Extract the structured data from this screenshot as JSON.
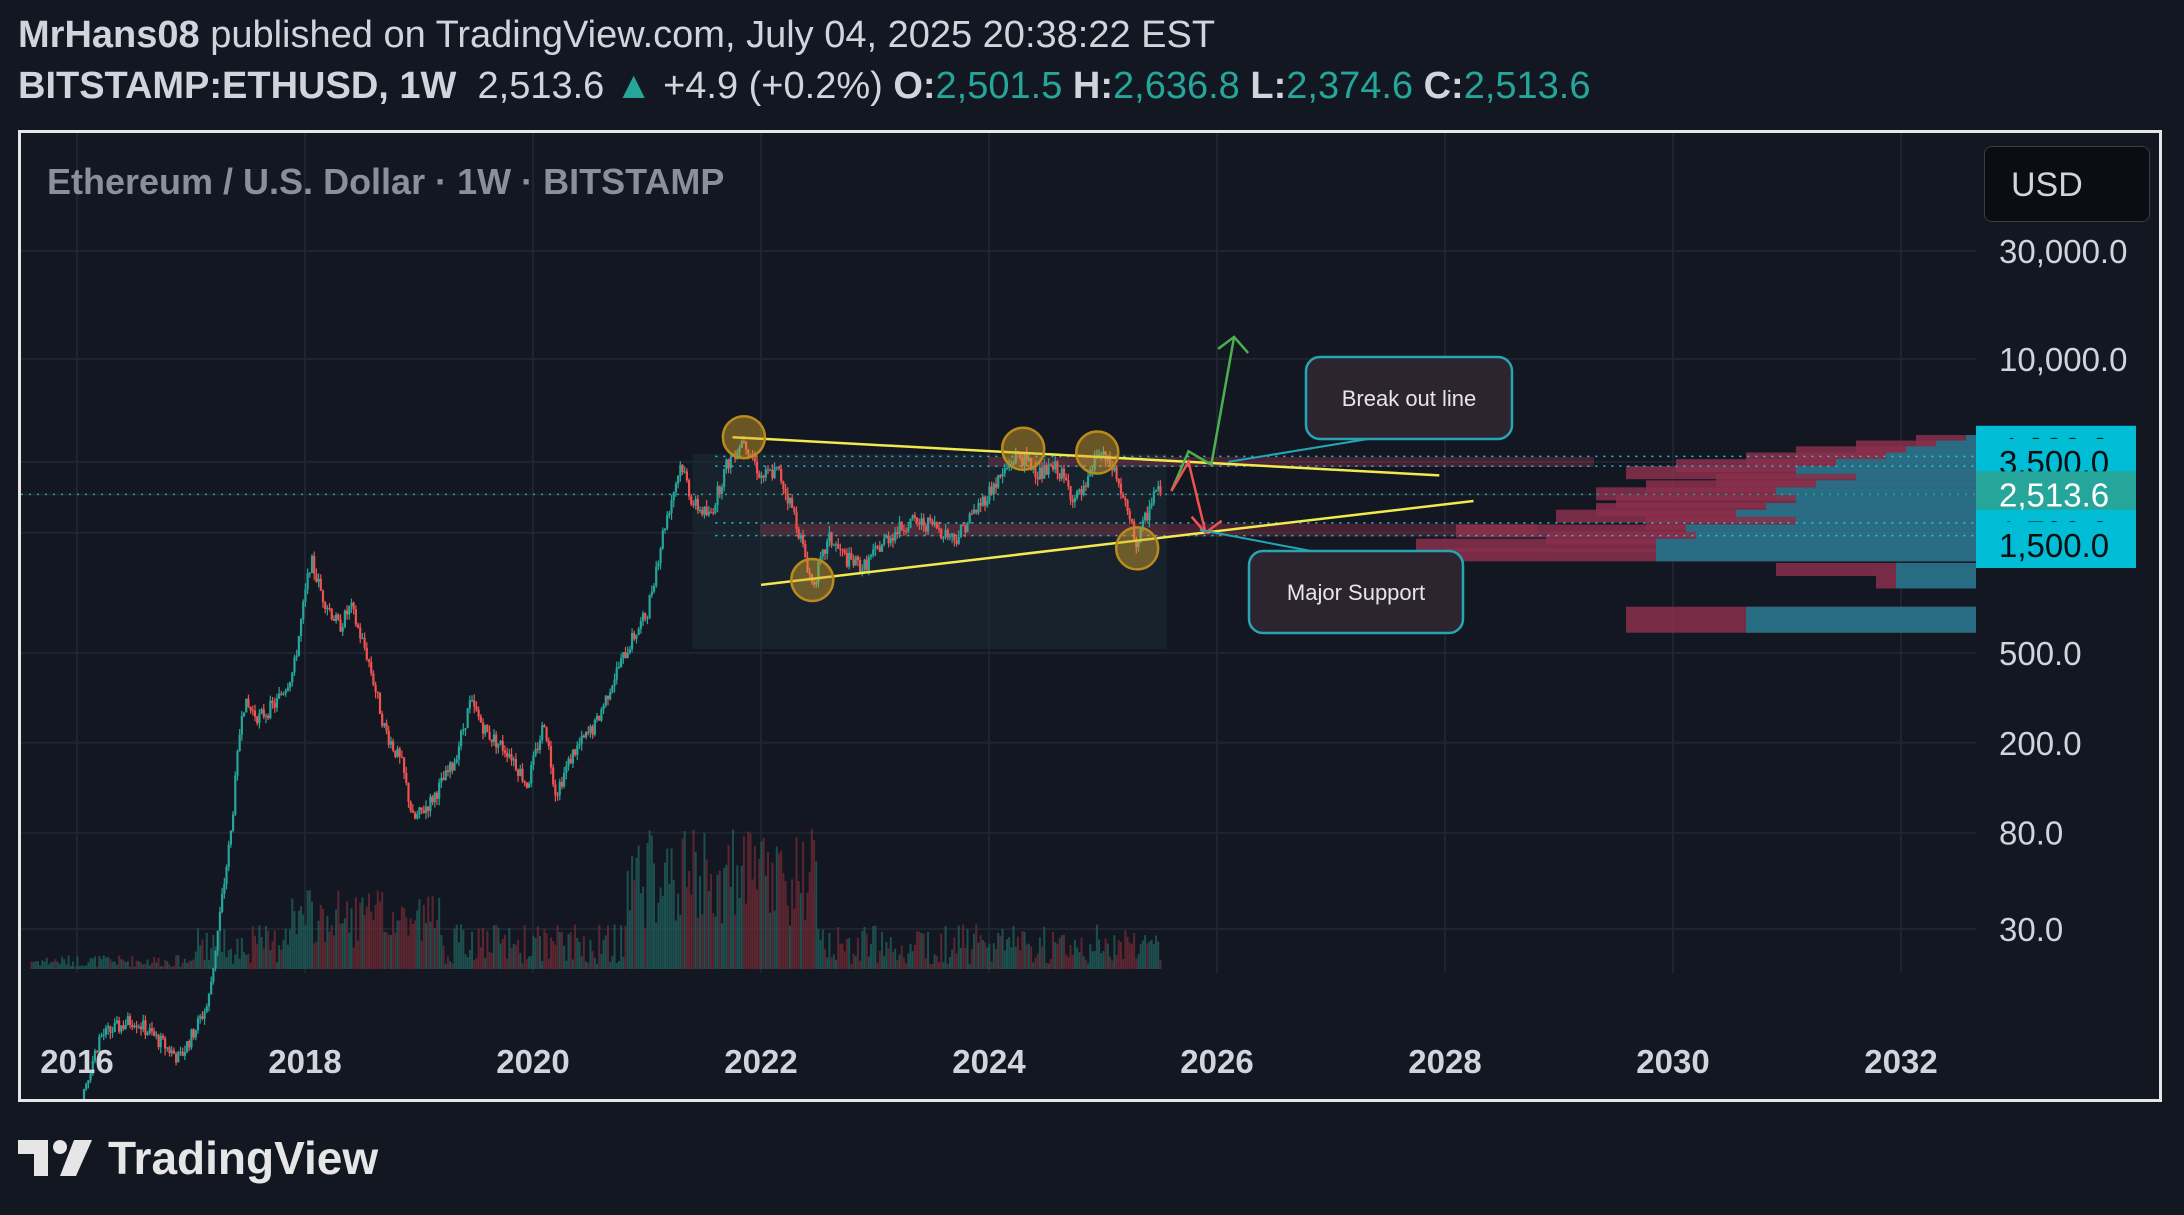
{
  "header": {
    "author": "MrHans08",
    "published": "published on TradingView.com, July 04, 2025 20:38:22 EST",
    "symbol": "BITSTAMP:ETHUSD, 1W",
    "price": "2,513.6",
    "change_arrow": "▲",
    "change": "+4.9 (+0.2%)",
    "open_label": "O:",
    "open": "2,501.5",
    "high_label": "H:",
    "high": "2,636.8",
    "low_label": "L:",
    "low": "2,374.6",
    "close_label": "C:",
    "close": "2,513.6"
  },
  "chart_title": "Ethereum / U.S. Dollar · 1W · BITSTAMP",
  "currency_button": "USD",
  "footer_brand": "TradingView",
  "colors": {
    "background": "#131722",
    "up": "#26a69a",
    "down": "#ef5350",
    "trendline": "#f2e94e",
    "badge": "#00bcd4",
    "price_badge": "#26a69a",
    "annotation_border": "#26a6b4",
    "zone": "#a3394f"
  },
  "chart_data": {
    "type": "candlestick",
    "symbol": "BITSTAMP:ETHUSD",
    "interval": "1W",
    "y_scale": "log",
    "x_ticks": [
      "2016",
      "2018",
      "2020",
      "2022",
      "2024",
      "2026",
      "2028",
      "2030",
      "2032"
    ],
    "y_ticks": [
      {
        "value": 30000,
        "label": "30,000.0"
      },
      {
        "value": 10000,
        "label": "10,000.0"
      },
      {
        "value": 500,
        "label": "500.0"
      },
      {
        "value": 200,
        "label": "200.0"
      },
      {
        "value": 80,
        "label": "80.0"
      },
      {
        "value": 30,
        "label": "30.0"
      }
    ],
    "price_badges": [
      {
        "value": 4000,
        "label": "4,000.0"
      },
      {
        "value": 3500,
        "label": "3,500.0"
      },
      {
        "value": 2513.6,
        "label": "2,513.6",
        "current": true
      },
      {
        "value": 1700,
        "label": "1,700.0"
      },
      {
        "value": 1500,
        "label": "1,500.0"
      }
    ],
    "price_path": [
      {
        "t": 2015.6,
        "v": 1.0
      },
      {
        "t": 2016.2,
        "v": 10
      },
      {
        "t": 2016.5,
        "v": 12
      },
      {
        "t": 2016.9,
        "v": 8
      },
      {
        "t": 2017.15,
        "v": 14
      },
      {
        "t": 2017.35,
        "v": 80
      },
      {
        "t": 2017.45,
        "v": 300
      },
      {
        "t": 2017.6,
        "v": 260
      },
      {
        "t": 2017.75,
        "v": 300
      },
      {
        "t": 2017.9,
        "v": 420
      },
      {
        "t": 2018.05,
        "v": 1300
      },
      {
        "t": 2018.15,
        "v": 900
      },
      {
        "t": 2018.3,
        "v": 650
      },
      {
        "t": 2018.4,
        "v": 800
      },
      {
        "t": 2018.55,
        "v": 480
      },
      {
        "t": 2018.7,
        "v": 230
      },
      {
        "t": 2018.85,
        "v": 160
      },
      {
        "t": 2018.95,
        "v": 90
      },
      {
        "t": 2019.1,
        "v": 110
      },
      {
        "t": 2019.3,
        "v": 160
      },
      {
        "t": 2019.45,
        "v": 300
      },
      {
        "t": 2019.6,
        "v": 220
      },
      {
        "t": 2019.8,
        "v": 180
      },
      {
        "t": 2019.95,
        "v": 130
      },
      {
        "t": 2020.1,
        "v": 250
      },
      {
        "t": 2020.2,
        "v": 120
      },
      {
        "t": 2020.35,
        "v": 180
      },
      {
        "t": 2020.55,
        "v": 240
      },
      {
        "t": 2020.7,
        "v": 380
      },
      {
        "t": 2020.85,
        "v": 550
      },
      {
        "t": 2021.0,
        "v": 750
      },
      {
        "t": 2021.15,
        "v": 1800
      },
      {
        "t": 2021.3,
        "v": 3500
      },
      {
        "t": 2021.4,
        "v": 2300
      },
      {
        "t": 2021.55,
        "v": 2000
      },
      {
        "t": 2021.7,
        "v": 3400
      },
      {
        "t": 2021.85,
        "v": 4500
      },
      {
        "t": 2022.0,
        "v": 3000
      },
      {
        "t": 2022.15,
        "v": 3200
      },
      {
        "t": 2022.3,
        "v": 2000
      },
      {
        "t": 2022.45,
        "v": 1000
      },
      {
        "t": 2022.6,
        "v": 1600
      },
      {
        "t": 2022.75,
        "v": 1300
      },
      {
        "t": 2022.9,
        "v": 1200
      },
      {
        "t": 2023.1,
        "v": 1600
      },
      {
        "t": 2023.3,
        "v": 1900
      },
      {
        "t": 2023.5,
        "v": 1850
      },
      {
        "t": 2023.7,
        "v": 1600
      },
      {
        "t": 2023.9,
        "v": 2200
      },
      {
        "t": 2024.1,
        "v": 3000
      },
      {
        "t": 2024.25,
        "v": 3800
      },
      {
        "t": 2024.45,
        "v": 3100
      },
      {
        "t": 2024.6,
        "v": 3300
      },
      {
        "t": 2024.75,
        "v": 2400
      },
      {
        "t": 2024.85,
        "v": 2600
      },
      {
        "t": 2024.95,
        "v": 3900
      },
      {
        "t": 2025.1,
        "v": 3200
      },
      {
        "t": 2025.25,
        "v": 1800
      },
      {
        "t": 2025.3,
        "v": 1500
      },
      {
        "t": 2025.45,
        "v": 2600
      },
      {
        "t": 2025.51,
        "v": 2513.6
      }
    ],
    "trendlines": [
      {
        "from": {
          "t": 2021.75,
          "v": 4500
        },
        "to": {
          "t": 2027.95,
          "v": 3050
        }
      },
      {
        "from": {
          "t": 2022.0,
          "v": 1000
        },
        "to": {
          "t": 2028.25,
          "v": 2350
        }
      }
    ],
    "zones": [
      {
        "t1": 2024.0,
        "t2": 2029.3,
        "v_low": 3350,
        "v_high": 3650
      },
      {
        "t1": 2022.0,
        "t2": 2028.8,
        "v_low": 1650,
        "v_high": 1850
      }
    ],
    "circles": [
      {
        "t": 2021.85,
        "v": 4500
      },
      {
        "t": 2022.45,
        "v": 1050
      },
      {
        "t": 2024.3,
        "v": 4000
      },
      {
        "t": 2024.95,
        "v": 3850
      },
      {
        "t": 2025.3,
        "v": 1450
      }
    ],
    "projections": {
      "bull": [
        {
          "t": 2025.6,
          "v": 2600
        },
        {
          "t": 2025.75,
          "v": 3900
        },
        {
          "t": 2025.95,
          "v": 3400
        },
        {
          "t": 2026.15,
          "v": 12500
        }
      ],
      "bear": [
        {
          "t": 2025.6,
          "v": 2600
        },
        {
          "t": 2025.75,
          "v": 3500
        },
        {
          "t": 2025.9,
          "v": 1700
        }
      ]
    },
    "annotations": [
      {
        "text": "Break out line"
      },
      {
        "text": "Major Support"
      }
    ]
  }
}
